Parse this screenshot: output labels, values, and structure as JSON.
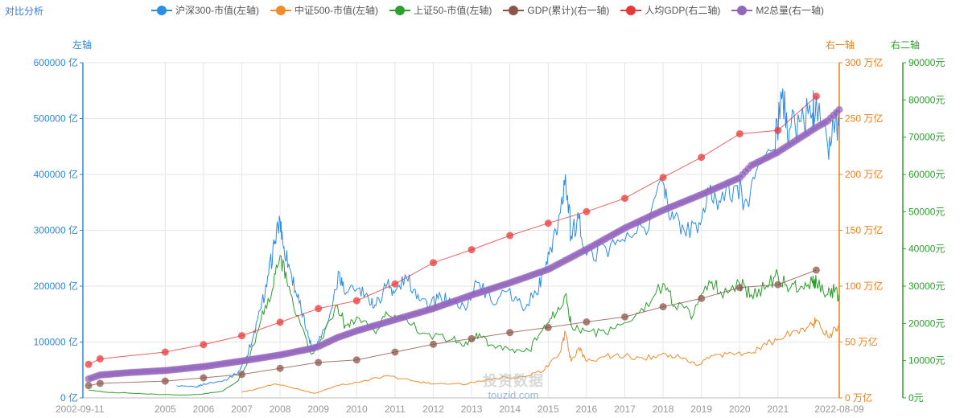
{
  "page": {
    "title": "对比分析"
  },
  "axes_names": {
    "left": "左轴",
    "right1": "右一轴",
    "right2": "右二轴"
  },
  "colors": {
    "left": "#2b88d8",
    "right1": "#ef7d15",
    "right2": "#2ca02c"
  },
  "watermark": {
    "cn": "投资数据",
    "en": "touzid.com"
  },
  "legend": [
    {
      "label": "沪深300-市值(左轴)",
      "color": "#2b8de8"
    },
    {
      "label": "中证500-市值(左轴)",
      "color": "#f28b2a"
    },
    {
      "label": "上证50-市值(左轴)",
      "color": "#2ca02c"
    },
    {
      "label": "GDP(累计)(右一轴)",
      "color": "#8c564b"
    },
    {
      "label": "人均GDP(右二轴)",
      "color": "#e8393a"
    },
    {
      "label": "M2总量(右一轴)",
      "color": "#9467bd"
    }
  ],
  "chart_data": {
    "type": "line",
    "x_range": [
      2002.85,
      2022.6
    ],
    "x_ticks": [
      {
        "value": 2002.85,
        "label": "2002-09-11"
      },
      {
        "value": 2005,
        "label": "2005"
      },
      {
        "value": 2006,
        "label": "2006"
      },
      {
        "value": 2007,
        "label": "2007"
      },
      {
        "value": 2008,
        "label": "2008"
      },
      {
        "value": 2009,
        "label": "2009"
      },
      {
        "value": 2010,
        "label": "2010"
      },
      {
        "value": 2011,
        "label": "2011"
      },
      {
        "value": 2012,
        "label": "2012"
      },
      {
        "value": 2013,
        "label": "2013"
      },
      {
        "value": 2014,
        "label": "2014"
      },
      {
        "value": 2015,
        "label": "2015"
      },
      {
        "value": 2016,
        "label": "2016"
      },
      {
        "value": 2017,
        "label": "2017"
      },
      {
        "value": 2018,
        "label": "2018"
      },
      {
        "value": 2019,
        "label": "2019"
      },
      {
        "value": 2020,
        "label": "2020"
      },
      {
        "value": 2021,
        "label": "2021"
      },
      {
        "value": 2022.6,
        "label": "2022-08-09"
      }
    ],
    "y_axes": {
      "left": {
        "range": [
          0,
          600000
        ],
        "ticks": [
          "0 亿",
          "100000 亿",
          "200000 亿",
          "300000 亿",
          "400000 亿",
          "500000 亿",
          "600000 亿"
        ]
      },
      "right1": {
        "range": [
          0,
          300
        ],
        "ticks": [
          "0 万亿",
          "50 万亿",
          "100 万亿",
          "150 万亿",
          "200 万亿",
          "250 万亿",
          "300 万亿"
        ]
      },
      "right2": {
        "range": [
          0,
          90000
        ],
        "ticks": [
          "0元",
          "10000元",
          "20000元",
          "30000元",
          "40000元",
          "50000元",
          "60000元",
          "70000元",
          "80000元",
          "90000元"
        ]
      }
    },
    "series": [
      {
        "name": "沪深300-市值(左轴)",
        "axis": "left",
        "color": "#2b8de8",
        "marker": false,
        "points": [
          [
            2005.3,
            22000
          ],
          [
            2005.8,
            19000
          ],
          [
            2006.0,
            25000
          ],
          [
            2006.5,
            30000
          ],
          [
            2006.9,
            45000
          ],
          [
            2007.1,
            70000
          ],
          [
            2007.3,
            110000
          ],
          [
            2007.5,
            160000
          ],
          [
            2007.7,
            220000
          ],
          [
            2007.85,
            275000
          ],
          [
            2008.0,
            318000
          ],
          [
            2008.1,
            270000
          ],
          [
            2008.3,
            220000
          ],
          [
            2008.5,
            170000
          ],
          [
            2008.7,
            120000
          ],
          [
            2008.85,
            85000
          ],
          [
            2009.0,
            100000
          ],
          [
            2009.3,
            150000
          ],
          [
            2009.55,
            225000
          ],
          [
            2009.7,
            185000
          ],
          [
            2010.0,
            195000
          ],
          [
            2010.3,
            180000
          ],
          [
            2010.5,
            165000
          ],
          [
            2010.8,
            205000
          ],
          [
            2011.0,
            190000
          ],
          [
            2011.3,
            215000
          ],
          [
            2011.6,
            185000
          ],
          [
            2011.9,
            165000
          ],
          [
            2012.2,
            180000
          ],
          [
            2012.5,
            170000
          ],
          [
            2012.9,
            165000
          ],
          [
            2013.1,
            210000
          ],
          [
            2013.5,
            175000
          ],
          [
            2013.9,
            190000
          ],
          [
            2014.3,
            165000
          ],
          [
            2014.7,
            185000
          ],
          [
            2014.9,
            230000
          ],
          [
            2015.1,
            260000
          ],
          [
            2015.3,
            330000
          ],
          [
            2015.45,
            400000
          ],
          [
            2015.6,
            290000
          ],
          [
            2015.8,
            320000
          ],
          [
            2016.0,
            255000
          ],
          [
            2016.5,
            270000
          ],
          [
            2017.0,
            280000
          ],
          [
            2017.5,
            305000
          ],
          [
            2018.0,
            385000
          ],
          [
            2018.2,
            320000
          ],
          [
            2018.5,
            310000
          ],
          [
            2018.9,
            295000
          ],
          [
            2019.2,
            370000
          ],
          [
            2019.5,
            350000
          ],
          [
            2019.9,
            380000
          ],
          [
            2020.2,
            350000
          ],
          [
            2020.5,
            420000
          ],
          [
            2020.9,
            445000
          ],
          [
            2021.1,
            535000
          ],
          [
            2021.3,
            480000
          ],
          [
            2021.6,
            495000
          ],
          [
            2021.9,
            510000
          ],
          [
            2022.0,
            540000
          ],
          [
            2022.3,
            450000
          ],
          [
            2022.5,
            500000
          ],
          [
            2022.6,
            490000
          ]
        ]
      },
      {
        "name": "中证500-市值(左轴)",
        "axis": "left",
        "color": "#f28b2a",
        "marker": false,
        "points": [
          [
            2007.0,
            10000
          ],
          [
            2007.5,
            18000
          ],
          [
            2007.9,
            25000
          ],
          [
            2008.1,
            22000
          ],
          [
            2008.5,
            15000
          ],
          [
            2008.9,
            8000
          ],
          [
            2009.5,
            22000
          ],
          [
            2010.0,
            28000
          ],
          [
            2010.8,
            40000
          ],
          [
            2011.5,
            30000
          ],
          [
            2012.0,
            25000
          ],
          [
            2012.9,
            25000
          ],
          [
            2013.6,
            35000
          ],
          [
            2014.5,
            40000
          ],
          [
            2014.9,
            50000
          ],
          [
            2015.3,
            80000
          ],
          [
            2015.45,
            117000
          ],
          [
            2015.6,
            65000
          ],
          [
            2015.8,
            90000
          ],
          [
            2016.0,
            65000
          ],
          [
            2016.5,
            75000
          ],
          [
            2017.0,
            75000
          ],
          [
            2017.5,
            70000
          ],
          [
            2018.0,
            80000
          ],
          [
            2018.5,
            70000
          ],
          [
            2018.9,
            58000
          ],
          [
            2019.3,
            75000
          ],
          [
            2019.8,
            80000
          ],
          [
            2020.3,
            80000
          ],
          [
            2020.7,
            95000
          ],
          [
            2021.0,
            105000
          ],
          [
            2021.5,
            120000
          ],
          [
            2021.9,
            130000
          ],
          [
            2022.0,
            140000
          ],
          [
            2022.3,
            110000
          ],
          [
            2022.5,
            125000
          ],
          [
            2022.6,
            122000
          ]
        ]
      },
      {
        "name": "上证50-市值(左轴)",
        "axis": "left",
        "color": "#2ca02c",
        "marker": false,
        "points": [
          [
            2003.0,
            14000
          ],
          [
            2003.5,
            10000
          ],
          [
            2004.0,
            9000
          ],
          [
            2004.5,
            7000
          ],
          [
            2005.0,
            6000
          ],
          [
            2005.5,
            5000
          ],
          [
            2006.0,
            7000
          ],
          [
            2006.5,
            12000
          ],
          [
            2006.9,
            30000
          ],
          [
            2007.2,
            70000
          ],
          [
            2007.5,
            140000
          ],
          [
            2007.8,
            195000
          ],
          [
            2008.0,
            255000
          ],
          [
            2008.2,
            200000
          ],
          [
            2008.5,
            140000
          ],
          [
            2008.8,
            80000
          ],
          [
            2009.0,
            95000
          ],
          [
            2009.5,
            165000
          ],
          [
            2009.7,
            130000
          ],
          [
            2010.0,
            145000
          ],
          [
            2010.5,
            115000
          ],
          [
            2010.8,
            150000
          ],
          [
            2011.2,
            140000
          ],
          [
            2011.8,
            115000
          ],
          [
            2012.5,
            105000
          ],
          [
            2012.9,
            95000
          ],
          [
            2013.2,
            115000
          ],
          [
            2013.5,
            95000
          ],
          [
            2014.0,
            85000
          ],
          [
            2014.5,
            85000
          ],
          [
            2014.9,
            130000
          ],
          [
            2015.2,
            150000
          ],
          [
            2015.45,
            185000
          ],
          [
            2015.6,
            130000
          ],
          [
            2016.0,
            120000
          ],
          [
            2016.5,
            115000
          ],
          [
            2017.0,
            135000
          ],
          [
            2017.5,
            155000
          ],
          [
            2018.0,
            205000
          ],
          [
            2018.3,
            165000
          ],
          [
            2018.8,
            150000
          ],
          [
            2019.2,
            210000
          ],
          [
            2019.5,
            190000
          ],
          [
            2020.0,
            205000
          ],
          [
            2020.3,
            185000
          ],
          [
            2020.7,
            200000
          ],
          [
            2021.0,
            220000
          ],
          [
            2021.3,
            195000
          ],
          [
            2021.6,
            200000
          ],
          [
            2021.9,
            205000
          ],
          [
            2022.0,
            210000
          ],
          [
            2022.3,
            185000
          ],
          [
            2022.5,
            195000
          ],
          [
            2022.6,
            180000
          ]
        ]
      },
      {
        "name": "GDP(累计)(右一轴)",
        "axis": "right1",
        "color": "#8c564b",
        "marker": true,
        "points": [
          [
            2003.0,
            11
          ],
          [
            2003.3,
            13
          ],
          [
            2005.0,
            15
          ],
          [
            2006.0,
            18
          ],
          [
            2007.0,
            21
          ],
          [
            2008.0,
            26.5
          ],
          [
            2009.0,
            31.7
          ],
          [
            2010.0,
            34
          ],
          [
            2011.0,
            41
          ],
          [
            2012.0,
            48
          ],
          [
            2013.0,
            53
          ],
          [
            2014.0,
            58.5
          ],
          [
            2015.0,
            63
          ],
          [
            2016.0,
            68
          ],
          [
            2017.0,
            72.5
          ],
          [
            2018.0,
            81.6
          ],
          [
            2019.0,
            89
          ],
          [
            2020.0,
            98.7
          ],
          [
            2021.0,
            101.4
          ],
          [
            2022.0,
            114.4
          ]
        ]
      },
      {
        "name": "人均GDP(右二轴)",
        "axis": "right2",
        "color": "#e8393a",
        "marker": true,
        "points": [
          [
            2003.0,
            9000
          ],
          [
            2003.3,
            10500
          ],
          [
            2005.0,
            12300
          ],
          [
            2006.0,
            14300
          ],
          [
            2007.0,
            16700
          ],
          [
            2008.0,
            20300
          ],
          [
            2009.0,
            24000
          ],
          [
            2010.0,
            26100
          ],
          [
            2011.0,
            30600
          ],
          [
            2012.0,
            36300
          ],
          [
            2013.0,
            39800
          ],
          [
            2014.0,
            43600
          ],
          [
            2015.0,
            46900
          ],
          [
            2016.0,
            50000
          ],
          [
            2017.0,
            53600
          ],
          [
            2018.0,
            59200
          ],
          [
            2019.0,
            64600
          ],
          [
            2020.0,
            70900
          ],
          [
            2021.0,
            71800
          ],
          [
            2022.0,
            81000
          ]
        ]
      },
      {
        "name": "M2总量(右一轴)",
        "axis": "right1",
        "color": "#9467bd",
        "marker": true,
        "dense": true,
        "points": [
          [
            2003.0,
            17
          ],
          [
            2003.3,
            20.5
          ],
          [
            2004.0,
            22.5
          ],
          [
            2005.0,
            24.5
          ],
          [
            2006.0,
            28
          ],
          [
            2007.0,
            33
          ],
          [
            2008.0,
            38.5
          ],
          [
            2008.8,
            44
          ],
          [
            2009.0,
            46
          ],
          [
            2009.5,
            54
          ],
          [
            2010.0,
            60
          ],
          [
            2011.0,
            70
          ],
          [
            2012.0,
            80
          ],
          [
            2013.0,
            92
          ],
          [
            2014.0,
            103
          ],
          [
            2015.0,
            115
          ],
          [
            2016.0,
            133
          ],
          [
            2017.0,
            152
          ],
          [
            2018.0,
            168
          ],
          [
            2019.0,
            182
          ],
          [
            2020.0,
            197
          ],
          [
            2020.3,
            208
          ],
          [
            2021.0,
            220
          ],
          [
            2022.0,
            242
          ],
          [
            2022.3,
            248
          ],
          [
            2022.6,
            258
          ]
        ]
      }
    ]
  }
}
